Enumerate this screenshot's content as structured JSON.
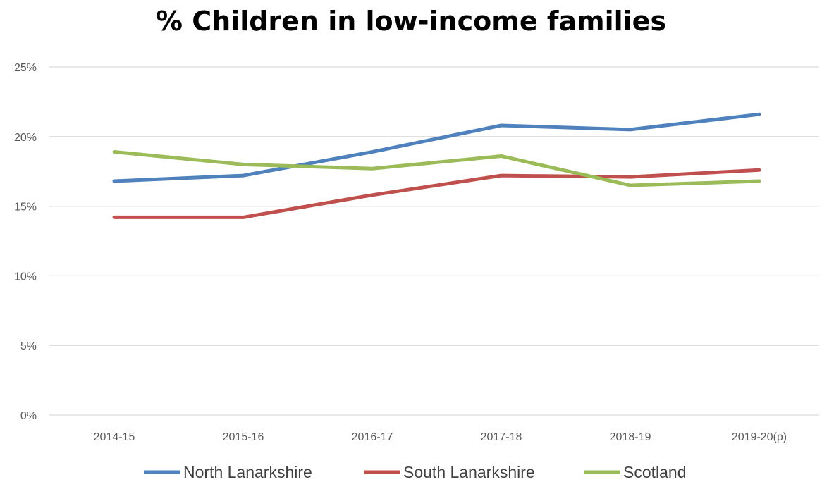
{
  "chart_data": {
    "type": "line",
    "title": "% Children in low-income families",
    "xlabel": "",
    "ylabel": "",
    "categories": [
      "2014-15",
      "2015-16",
      "2016-17",
      "2017-18",
      "2018-19",
      "2019-20(p)"
    ],
    "yticks": [
      "0%",
      "5%",
      "10%",
      "15%",
      "20%",
      "25%"
    ],
    "ylim": [
      0,
      25
    ],
    "grid": "horizontal",
    "legend_position": "bottom",
    "series": [
      {
        "name": "North Lanarkshire",
        "color": "#4f81bd",
        "values": [
          16.8,
          17.2,
          18.9,
          20.8,
          20.5,
          21.6
        ]
      },
      {
        "name": "South Lanarkshire",
        "color": "#c0504d",
        "values": [
          14.2,
          14.2,
          15.8,
          17.2,
          17.1,
          17.6
        ]
      },
      {
        "name": "Scotland",
        "color": "#9bbb59",
        "values": [
          18.9,
          18.0,
          17.7,
          18.6,
          16.5,
          16.8
        ]
      }
    ]
  }
}
